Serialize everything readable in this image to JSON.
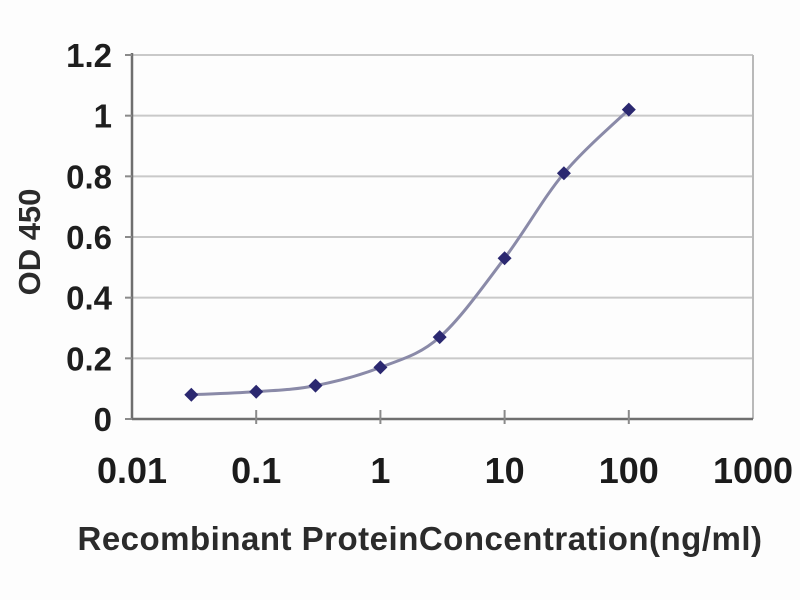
{
  "chart_data": {
    "type": "line",
    "title": "",
    "xlabel": "Recombinant ProteinConcentration(ng/ml)",
    "ylabel": "OD 450",
    "x_scale": "log",
    "xlim": [
      0.01,
      1000
    ],
    "ylim": [
      0,
      1.2
    ],
    "x_ticks": [
      0.01,
      0.1,
      1,
      10,
      100,
      1000
    ],
    "x_tick_labels": [
      "0.01",
      "0.1",
      "1",
      "10",
      "100",
      "1000"
    ],
    "y_ticks": [
      0,
      0.2,
      0.4,
      0.6,
      0.8,
      1,
      1.2
    ],
    "y_tick_labels": [
      "0",
      "0.2",
      "0.4",
      "0.6",
      "0.8",
      "1",
      "1.2"
    ],
    "grid": "horizontal-only",
    "legend": "none",
    "series": [
      {
        "marker": "diamond",
        "smoothed": true,
        "x": [
          0.03,
          0.1,
          0.3,
          1,
          3,
          10,
          30,
          100
        ],
        "y": [
          0.08,
          0.09,
          0.11,
          0.17,
          0.27,
          0.53,
          0.81,
          1.02
        ]
      }
    ],
    "colors": {
      "line": "#8a8aa8",
      "marker": "#2b2870",
      "grid": "#c9c9c9",
      "axis": "#6f6f6f",
      "plot_border": "#b9b9b9",
      "tick": "#8a8a8a",
      "tick_label": "#1e1e1e",
      "axis_title": "#2b2b2b",
      "background": "#fdfdfd"
    }
  }
}
